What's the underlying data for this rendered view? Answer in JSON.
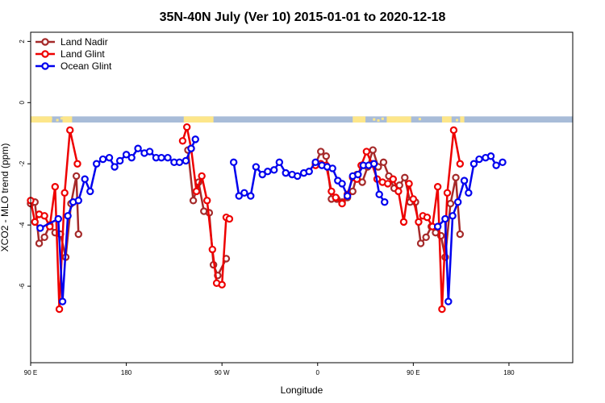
{
  "chart_data": {
    "type": "line",
    "title": "35N-40N July (Ver 10)   2015-01-01 to 2020-12-18",
    "xlabel": "Longitude",
    "ylabel": "XCO2 - MLO trend (ppm)",
    "xlim": [
      -90,
      420
    ],
    "ylim": [
      -8.5,
      2.3
    ],
    "x_ticks": [
      {
        "value": -90,
        "label": "90 E"
      },
      {
        "value": 0,
        "label": "180"
      },
      {
        "value": 90,
        "label": "90 W"
      },
      {
        "value": 180,
        "label": "0"
      },
      {
        "value": 270,
        "label": "90 E"
      },
      {
        "value": 360,
        "label": "180"
      }
    ],
    "y_ticks": [
      {
        "value": 2,
        "label": "2"
      },
      {
        "value": 0,
        "label": "0"
      },
      {
        "value": -2,
        "label": "-2"
      },
      {
        "value": -4,
        "label": "-4"
      },
      {
        "value": -6,
        "label": "-6"
      }
    ],
    "legend_position": "top-left",
    "land_band": {
      "y_top": -0.45,
      "y_bottom": -0.65,
      "ocean_color": "#a8bcd8",
      "land_color": "#fde68a"
    },
    "series": [
      {
        "name": "Land Nadir",
        "color": "#a52a2a",
        "points": [
          [
            -90,
            -3.3
          ],
          [
            -86,
            -3.25
          ],
          [
            -82,
            -4.6
          ],
          [
            -77,
            -4.4
          ],
          [
            -72,
            -4.0
          ],
          [
            -67,
            -4.25
          ],
          [
            -62,
            -4.3
          ],
          [
            -57,
            -5.05
          ],
          [
            -52,
            -3.3
          ],
          [
            -47,
            -2.4
          ],
          [
            -45,
            -4.3
          ],
          [
            58,
            -1.55
          ],
          [
            63,
            -3.2
          ],
          [
            68,
            -2.6
          ],
          [
            73,
            -3.55
          ],
          [
            78,
            -3.6
          ],
          [
            82,
            -5.3
          ],
          [
            86,
            -5.65
          ],
          [
            94,
            -5.1
          ],
          [
            178,
            -2.0
          ],
          [
            183,
            -1.6
          ],
          [
            188,
            -1.75
          ],
          [
            193,
            -3.15
          ],
          [
            198,
            -3.15
          ],
          [
            203,
            -3.25
          ],
          [
            208,
            -3.1
          ],
          [
            213,
            -2.9
          ],
          [
            217,
            -2.35
          ],
          [
            222,
            -2.6
          ],
          [
            227,
            -2.1
          ],
          [
            232,
            -1.55
          ],
          [
            237,
            -2.1
          ],
          [
            242,
            -1.95
          ],
          [
            247,
            -2.4
          ],
          [
            252,
            -2.8
          ],
          [
            257,
            -2.7
          ],
          [
            262,
            -2.45
          ],
          [
            267,
            -3.25
          ],
          [
            272,
            -3.25
          ],
          [
            277,
            -4.6
          ],
          [
            282,
            -4.4
          ],
          [
            287,
            -4.05
          ],
          [
            291,
            -4.25
          ],
          [
            296,
            -4.35
          ],
          [
            300,
            -5.05
          ],
          [
            305,
            -3.3
          ],
          [
            310,
            -2.45
          ],
          [
            314,
            -4.3
          ]
        ]
      },
      {
        "name": "Land Glint",
        "color": "#ee0000",
        "points": [
          [
            -90,
            -3.2
          ],
          [
            -86,
            -3.9
          ],
          [
            -82,
            -3.65
          ],
          [
            -77,
            -3.7
          ],
          [
            -72,
            -4.05
          ],
          [
            -67,
            -2.75
          ],
          [
            -63,
            -6.75
          ],
          [
            -58,
            -2.95
          ],
          [
            -53,
            -0.9
          ],
          [
            -46,
            -2.0
          ],
          [
            53,
            -1.25
          ],
          [
            57,
            -0.8
          ],
          [
            61,
            -1.5
          ],
          [
            66,
            -2.9
          ],
          [
            71,
            -2.4
          ],
          [
            76,
            -3.2
          ],
          [
            81,
            -4.8
          ],
          [
            85,
            -5.9
          ],
          [
            90,
            -5.95
          ],
          [
            94,
            -3.75
          ],
          [
            97,
            -3.8
          ],
          [
            178,
            -2.05
          ],
          [
            183,
            -2.0
          ],
          [
            188,
            -2.05
          ],
          [
            193,
            -2.9
          ],
          [
            197,
            -3.1
          ],
          [
            203,
            -3.3
          ],
          [
            208,
            -3.0
          ],
          [
            213,
            -2.45
          ],
          [
            217,
            -2.5
          ],
          [
            221,
            -2.05
          ],
          [
            226,
            -1.6
          ],
          [
            231,
            -2.0
          ],
          [
            236,
            -2.5
          ],
          [
            241,
            -2.6
          ],
          [
            246,
            -2.65
          ],
          [
            251,
            -2.5
          ],
          [
            256,
            -2.9
          ],
          [
            261,
            -3.9
          ],
          [
            266,
            -2.65
          ],
          [
            270,
            -3.15
          ],
          [
            275,
            -3.9
          ],
          [
            279,
            -3.7
          ],
          [
            283,
            -3.75
          ],
          [
            288,
            -4.05
          ],
          [
            293,
            -2.75
          ],
          [
            297,
            -6.75
          ],
          [
            302,
            -2.95
          ],
          [
            308,
            -0.9
          ],
          [
            314,
            -2.0
          ]
        ]
      },
      {
        "name": "Ocean Glint",
        "color": "#0000ee",
        "points": [
          [
            -81,
            -4.1
          ],
          [
            -64,
            -3.8
          ],
          [
            -60,
            -6.5
          ],
          [
            -55,
            -3.7
          ],
          [
            -50,
            -3.25
          ],
          [
            -45,
            -3.2
          ],
          [
            -39,
            -2.5
          ],
          [
            -34,
            -2.9
          ],
          [
            -28,
            -2.0
          ],
          [
            -22,
            -1.85
          ],
          [
            -16,
            -1.8
          ],
          [
            -11,
            -2.1
          ],
          [
            -6,
            -1.9
          ],
          [
            0,
            -1.7
          ],
          [
            5,
            -1.8
          ],
          [
            11,
            -1.5
          ],
          [
            17,
            -1.65
          ],
          [
            22,
            -1.6
          ],
          [
            28,
            -1.8
          ],
          [
            33,
            -1.8
          ],
          [
            39,
            -1.8
          ],
          [
            45,
            -1.95
          ],
          [
            50,
            -1.95
          ],
          [
            56,
            -1.9
          ],
          [
            61,
            -1.5
          ],
          [
            65,
            -1.2
          ],
          [
            101,
            -1.95
          ],
          [
            106,
            -3.05
          ],
          [
            111,
            -2.95
          ],
          [
            117,
            -3.05
          ],
          [
            122,
            -2.1
          ],
          [
            128,
            -2.35
          ],
          [
            133,
            -2.25
          ],
          [
            139,
            -2.2
          ],
          [
            144,
            -1.95
          ],
          [
            150,
            -2.3
          ],
          [
            156,
            -2.35
          ],
          [
            161,
            -2.4
          ],
          [
            167,
            -2.3
          ],
          [
            172,
            -2.25
          ],
          [
            178,
            -1.95
          ],
          [
            184,
            -2.05
          ],
          [
            189,
            -2.1
          ],
          [
            194,
            -2.15
          ],
          [
            199,
            -2.55
          ],
          [
            203,
            -2.65
          ],
          [
            208,
            -3.05
          ],
          [
            213,
            -2.4
          ],
          [
            218,
            -2.35
          ],
          [
            223,
            -2.05
          ],
          [
            228,
            -2.05
          ],
          [
            233,
            -2.0
          ],
          [
            238,
            -3.0
          ],
          [
            243,
            -3.25
          ],
          [
            293,
            -4.05
          ],
          [
            300,
            -3.8
          ],
          [
            303,
            -6.5
          ],
          [
            307,
            -3.7
          ],
          [
            312,
            -3.25
          ],
          [
            318,
            -2.55
          ],
          [
            322,
            -2.95
          ],
          [
            327,
            -2.0
          ],
          [
            332,
            -1.85
          ],
          [
            338,
            -1.8
          ],
          [
            343,
            -1.75
          ],
          [
            348,
            -2.05
          ],
          [
            354,
            -1.95
          ]
        ]
      }
    ]
  }
}
